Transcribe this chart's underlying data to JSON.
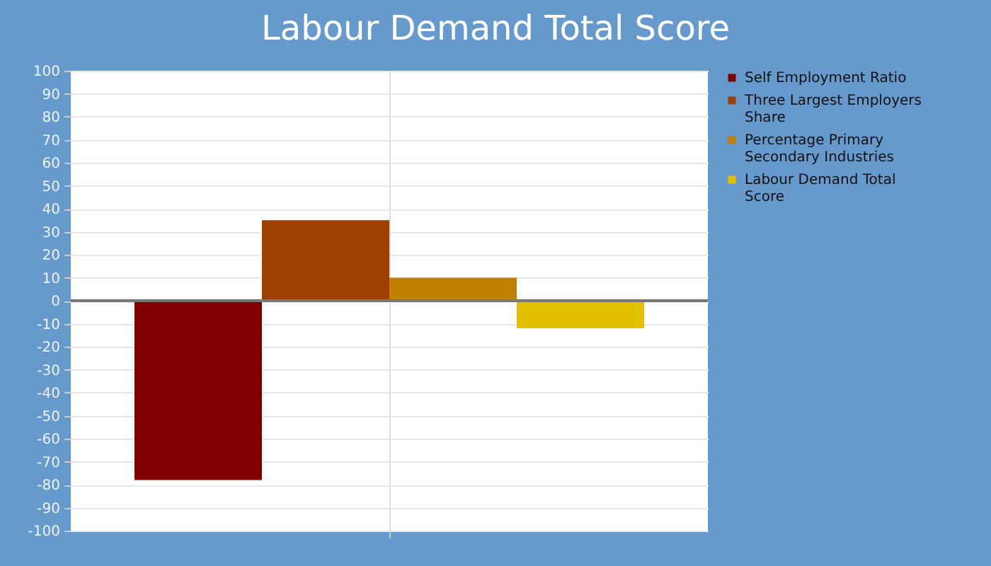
{
  "chart_data": {
    "type": "bar",
    "title": "Labour Demand Total Score",
    "categories": [
      null
    ],
    "series": [
      {
        "name": "Self Employment Ratio",
        "color": "#800000",
        "values": [
          -78
        ]
      },
      {
        "name": "Three Largest Employers Share",
        "color": "#9e4100",
        "values": [
          35
        ]
      },
      {
        "name": "Percentage Primary Secondary Industries",
        "color": "#c08000",
        "values": [
          10
        ]
      },
      {
        "name": "Labour Demand Total Score",
        "color": "#e0c000",
        "values": [
          -12
        ]
      }
    ],
    "ylim": [
      -100,
      100
    ],
    "yticks": [
      -100,
      -90,
      -80,
      -70,
      -60,
      -50,
      -40,
      -30,
      -20,
      -10,
      0,
      10,
      20,
      30,
      40,
      50,
      60,
      70,
      80,
      90,
      100
    ],
    "ref_lines": [
      {
        "axis": "y",
        "value": 0,
        "color": "#777777"
      }
    ],
    "grid": true,
    "legend": "right",
    "tick_labels": "y"
  }
}
